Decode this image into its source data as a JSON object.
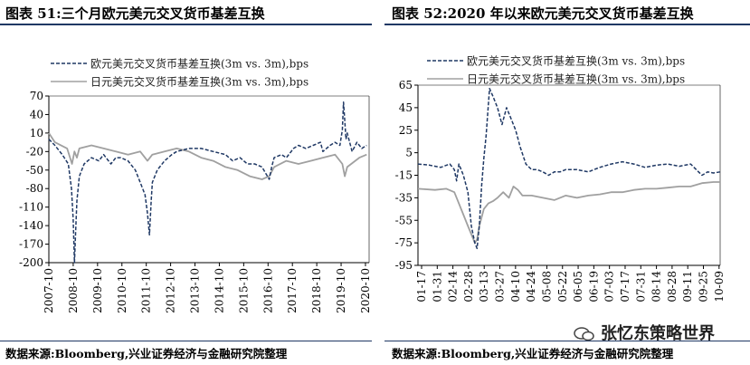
{
  "charts": [
    {
      "title": "图表 51:三个月欧元美元交叉货币基差互换",
      "source": "数据来源:Bloomberg,兴业证券经济与金融研究院整理"
    },
    {
      "title": "图表 52:2020 年以来欧元美元交叉货币基差互换",
      "source": "数据来源:Bloomberg,兴业证券经济与金融研究院整理"
    }
  ],
  "watermark": "张忆东策略世界",
  "chart_data": [
    {
      "type": "line",
      "title": "图表 51:三个月欧元美元交叉货币基差互换",
      "x_ticks": [
        "2007-10",
        "2008-10",
        "2009-10",
        "2010-10",
        "2011-10",
        "2012-10",
        "2013-10",
        "2014-10",
        "2015-10",
        "2016-10",
        "2017-10",
        "2018-10",
        "2019-10",
        "2020-10"
      ],
      "y_ticks": [
        70,
        40,
        10,
        -20,
        -50,
        -80,
        -110,
        -140,
        -170,
        -200
      ],
      "ylim": [
        -200,
        70
      ],
      "xlim": [
        2007.75,
        2020.9
      ],
      "legend": [
        "欧元美元交叉货币基差互换(3m vs. 3m),bps",
        "日元美元交叉货币基差互换(3m vs. 3m),bps"
      ],
      "legend_position": "top",
      "grid": false,
      "series": [
        {
          "name": "欧元美元交叉货币基差互换(3m vs. 3m),bps",
          "color": "#1f3864",
          "style": "dashed",
          "x": [
            2007.75,
            2008.0,
            2008.3,
            2008.55,
            2008.68,
            2008.75,
            2008.8,
            2008.85,
            2008.9,
            2009.0,
            2009.2,
            2009.5,
            2009.8,
            2010.0,
            2010.3,
            2010.5,
            2010.7,
            2011.0,
            2011.3,
            2011.5,
            2011.7,
            2011.8,
            2011.88,
            2011.95,
            2012.0,
            2012.2,
            2012.5,
            2012.8,
            2013.0,
            2013.5,
            2014.0,
            2014.5,
            2015.0,
            2015.3,
            2015.6,
            2015.9,
            2016.2,
            2016.5,
            2016.8,
            2016.9,
            2017.0,
            2017.3,
            2017.5,
            2017.8,
            2018.0,
            2018.3,
            2018.6,
            2018.9,
            2019.0,
            2019.3,
            2019.5,
            2019.7,
            2019.8,
            2019.85,
            2019.9,
            2019.95,
            2020.0,
            2020.2,
            2020.4,
            2020.6,
            2020.8
          ],
          "y": [
            0,
            -10,
            -25,
            -40,
            -80,
            -130,
            -200,
            -150,
            -100,
            -60,
            -40,
            -30,
            -35,
            -25,
            -40,
            -30,
            -30,
            -35,
            -50,
            -70,
            -90,
            -120,
            -155,
            -100,
            -70,
            -50,
            -35,
            -25,
            -20,
            -15,
            -15,
            -20,
            -25,
            -35,
            -30,
            -40,
            -40,
            -45,
            -65,
            -45,
            -30,
            -25,
            -30,
            -15,
            -10,
            -15,
            -10,
            -5,
            -20,
            -10,
            -5,
            -10,
            15,
            60,
            30,
            0,
            10,
            -20,
            -5,
            -15,
            -10
          ]
        },
        {
          "name": "日元美元交叉货币基差互换(3m vs. 3m),bps",
          "color": "#a0a0a0",
          "style": "solid",
          "x": [
            2007.75,
            2008.0,
            2008.5,
            2008.7,
            2008.8,
            2008.9,
            2009.0,
            2009.5,
            2010.0,
            2010.5,
            2011.0,
            2011.5,
            2011.8,
            2012.0,
            2012.5,
            2013.0,
            2013.5,
            2014.0,
            2014.5,
            2015.0,
            2015.5,
            2016.0,
            2016.5,
            2016.8,
            2017.0,
            2017.5,
            2018.0,
            2018.5,
            2019.0,
            2019.5,
            2019.8,
            2019.9,
            2020.0,
            2020.5,
            2020.8
          ],
          "y": [
            10,
            -5,
            -15,
            -40,
            -20,
            -30,
            -15,
            -10,
            -15,
            -20,
            -25,
            -20,
            -35,
            -25,
            -20,
            -15,
            -20,
            -30,
            -35,
            -45,
            -50,
            -60,
            -65,
            -60,
            -45,
            -35,
            -40,
            -35,
            -30,
            -25,
            -40,
            -60,
            -45,
            -30,
            -25
          ]
        }
      ]
    },
    {
      "type": "line",
      "title": "图表 52:2020 年以来欧元美元交叉货币基差互换",
      "x_ticks": [
        "01-17",
        "01-31",
        "02-14",
        "02-28",
        "03-13",
        "03-27",
        "04-10",
        "04-24",
        "05-08",
        "05-22",
        "06-05",
        "06-19",
        "07-03",
        "07-17",
        "07-31",
        "08-14",
        "08-28",
        "09-11",
        "09-25",
        "10-09"
      ],
      "y_ticks": [
        65,
        45,
        25,
        5,
        -15,
        -35,
        -55,
        -75,
        -95
      ],
      "ylim": [
        -95,
        65
      ],
      "xlim": [
        0,
        266
      ],
      "legend": [
        "欧元美元交叉货币基差互换(3m vs. 3m),bps",
        "日元美元交叉货币基差互换(3m vs. 3m),bps"
      ],
      "legend_position": "top",
      "grid": false,
      "series": [
        {
          "name": "欧元美元交叉货币基差互换(3m vs. 3m),bps",
          "color": "#1f3864",
          "style": "dashed",
          "x": [
            0,
            10,
            20,
            28,
            32,
            34,
            36,
            40,
            44,
            47,
            50,
            52,
            54,
            56,
            58,
            60,
            63,
            66,
            70,
            74,
            78,
            82,
            86,
            90,
            95,
            100,
            105,
            110,
            115,
            120,
            125,
            130,
            140,
            150,
            160,
            170,
            180,
            190,
            200,
            210,
            220,
            230,
            240,
            245,
            250,
            255,
            260,
            266
          ],
          "y": [
            -5,
            -6,
            -8,
            -5,
            -10,
            -20,
            -5,
            -15,
            -30,
            -60,
            -75,
            -80,
            -60,
            -25,
            0,
            20,
            62,
            55,
            45,
            30,
            45,
            35,
            25,
            10,
            -5,
            -10,
            -10,
            -12,
            -15,
            -12,
            -12,
            -10,
            -10,
            -12,
            -8,
            -5,
            -3,
            -5,
            -8,
            -6,
            -5,
            -7,
            -5,
            -10,
            -15,
            -12,
            -13,
            -12
          ]
        },
        {
          "name": "日元美元交叉货币基差互换(3m vs. 3m),bps",
          "color": "#a0a0a0",
          "style": "solid",
          "x": [
            0,
            15,
            25,
            32,
            36,
            40,
            44,
            48,
            50,
            52,
            54,
            58,
            62,
            66,
            70,
            75,
            80,
            84,
            88,
            92,
            100,
            110,
            120,
            130,
            140,
            150,
            160,
            170,
            180,
            190,
            200,
            210,
            220,
            230,
            240,
            250,
            260,
            266
          ],
          "y": [
            -27,
            -28,
            -27,
            -30,
            -40,
            -50,
            -60,
            -70,
            -75,
            -72,
            -60,
            -45,
            -40,
            -38,
            -35,
            -30,
            -35,
            -25,
            -28,
            -33,
            -33,
            -35,
            -37,
            -33,
            -35,
            -33,
            -32,
            -30,
            -30,
            -28,
            -27,
            -27,
            -26,
            -25,
            -25,
            -22,
            -21,
            -21
          ]
        }
      ]
    }
  ]
}
